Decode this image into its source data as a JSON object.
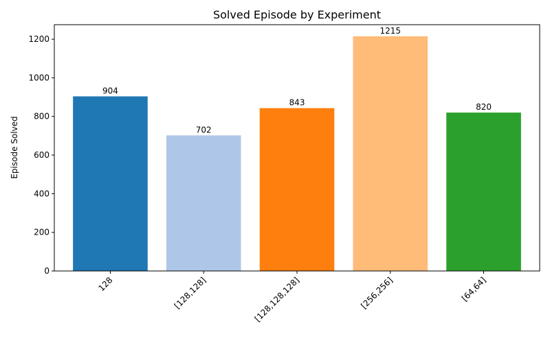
{
  "chart_data": {
    "type": "bar",
    "title": "Solved Episode by Experiment",
    "xlabel": "",
    "ylabel": "Episode Solved",
    "categories": [
      "128",
      "[128,128]",
      "[128,128,128]",
      "[256,256]",
      "[64,64]"
    ],
    "values": [
      904,
      702,
      843,
      1215,
      820
    ],
    "colors": [
      "#1f77b4",
      "#aec7e8",
      "#ff7f0e",
      "#ffbb78",
      "#2ca02c"
    ],
    "ylim": [
      0,
      1275
    ],
    "yticks": [
      0,
      200,
      400,
      600,
      800,
      1000,
      1200
    ],
    "grid": false,
    "legend": "none"
  }
}
